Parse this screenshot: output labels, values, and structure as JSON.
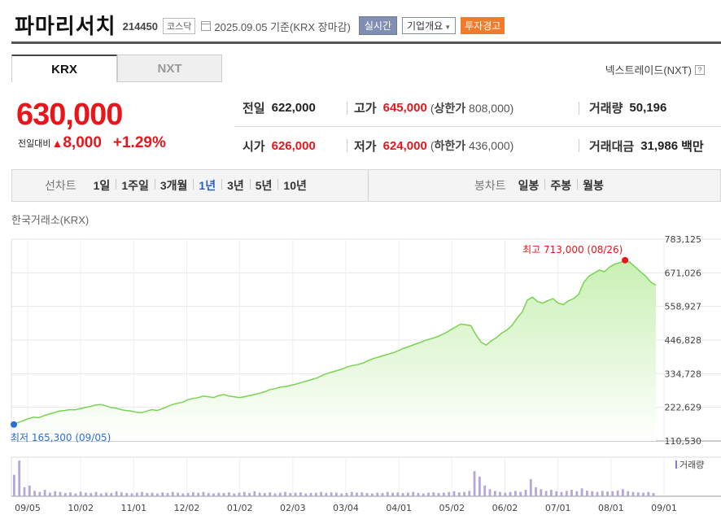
{
  "header": {
    "name": "파마리서치",
    "code": "214450",
    "market": "코스닥",
    "date": "2025.09.05",
    "date_suffix": "기준(KRX 장마감)",
    "live_btn": "실시간",
    "info_btn": "기업개요",
    "warn_btn": "투자경고"
  },
  "tabs": [
    "KRX",
    "NXT"
  ],
  "nxt_link": "넥스트레이드(NXT)",
  "price": {
    "current": "630,000",
    "change_label": "전일대비",
    "change_value": "8,000",
    "change_percent": "+1.29%"
  },
  "stats": {
    "prev_label": "전일",
    "prev": "622,000",
    "high_label": "고가",
    "high": "645,000",
    "upper_label": "상한가",
    "upper": "808,000",
    "vol_label": "거래량",
    "vol": "50,196",
    "open_label": "시가",
    "open": "626,000",
    "low_label": "저가",
    "low": "624,000",
    "lower_label": "하한가",
    "lower": "436,000",
    "amount_label": "거래대금",
    "amount": "31,986",
    "amount_unit": "백만"
  },
  "period": {
    "line_label": "선차트",
    "line_items": [
      "1일",
      "1주일",
      "3개월",
      "1년",
      "3년",
      "5년",
      "10년"
    ],
    "selected": "1년",
    "candle_label": "봉차트",
    "candle_items": [
      "일봉",
      "주봉",
      "월봉"
    ]
  },
  "exchange_label": "한국거래소(KRX)",
  "colors": {
    "up": "#e8161b",
    "line": "#79d34f",
    "fill": "#c9f0b4",
    "low_dot": "#2a6fd4",
    "high_dot": "#e8161b",
    "volume": "#b5a8d9"
  },
  "chart_data": {
    "type": "area",
    "y_ticks": [
      "783,125",
      "671,026",
      "558,927",
      "446,828",
      "334,728",
      "222,629",
      "110,530"
    ],
    "ylim": [
      110530,
      783125
    ],
    "x_ticks": [
      "09/05",
      "10/02",
      "11/01",
      "12/02",
      "01/02",
      "02/03",
      "03/04",
      "04/01",
      "05/02",
      "06/02",
      "07/01",
      "08/01",
      "09/01"
    ],
    "high_annotation": "최고 713,000 (08/26)",
    "low_annotation": "최저 165,300 (09/05)",
    "volume_label": "거래량",
    "series": [
      {
        "values": [
          165300,
          172000,
          178000,
          185000,
          190000,
          188000,
          195000,
          200000,
          205000,
          210000,
          212000,
          215000,
          214000,
          218000,
          222000,
          225000,
          230000,
          232000,
          228000,
          222000,
          220000,
          215000,
          212000,
          210000,
          206000,
          205000,
          210000,
          215000,
          212000,
          218000,
          225000,
          232000,
          236000,
          240000,
          248000,
          252000,
          255000,
          260000,
          258000,
          255000,
          262000,
          265000,
          260000,
          258000,
          255000,
          258000,
          262000,
          265000,
          270000,
          275000,
          282000,
          285000,
          290000,
          292000,
          296000,
          300000,
          305000,
          310000,
          315000,
          320000,
          328000,
          335000,
          340000,
          345000,
          350000,
          358000,
          362000,
          365000,
          370000,
          378000,
          385000,
          390000,
          395000,
          400000,
          405000,
          412000,
          420000,
          425000,
          432000,
          438000,
          445000,
          450000,
          455000,
          462000,
          470000,
          480000,
          490000,
          500000,
          498000,
          495000,
          465000,
          440000,
          430000,
          445000,
          455000,
          470000,
          480000,
          495000,
          520000,
          540000,
          580000,
          590000,
          575000,
          570000,
          578000,
          585000,
          570000,
          565000,
          578000,
          585000,
          600000,
          640000,
          660000,
          670000,
          680000,
          675000,
          690000,
          700000,
          705000,
          713000,
          705000,
          690000,
          675000,
          660000,
          640000,
          630000
        ]
      }
    ],
    "volume": [
      60,
      100,
      25,
      30,
      15,
      12,
      18,
      10,
      14,
      12,
      9,
      11,
      8,
      13,
      10,
      9,
      12,
      8,
      10,
      9,
      14,
      11,
      9,
      8,
      10,
      12,
      9,
      10,
      8,
      11,
      9,
      12,
      10,
      8,
      9,
      11,
      10,
      12,
      9,
      8,
      10,
      9,
      11,
      8,
      10,
      12,
      9,
      14,
      10,
      9,
      11,
      8,
      10,
      12,
      9,
      10,
      11,
      8,
      9,
      10,
      12,
      9,
      11,
      10,
      8,
      9,
      12,
      10,
      11,
      9,
      8,
      10,
      9,
      12,
      10,
      11,
      9,
      10,
      12,
      9,
      8,
      10,
      11,
      9,
      10,
      12,
      14,
      11,
      12,
      15,
      70,
      55,
      30,
      20,
      15,
      12,
      10,
      12,
      15,
      12,
      18,
      48,
      25,
      20,
      15,
      18,
      14,
      12,
      15,
      18,
      14,
      22,
      16,
      14,
      12,
      15,
      13,
      14,
      16,
      20,
      14,
      12,
      11,
      10,
      12,
      9
    ]
  }
}
